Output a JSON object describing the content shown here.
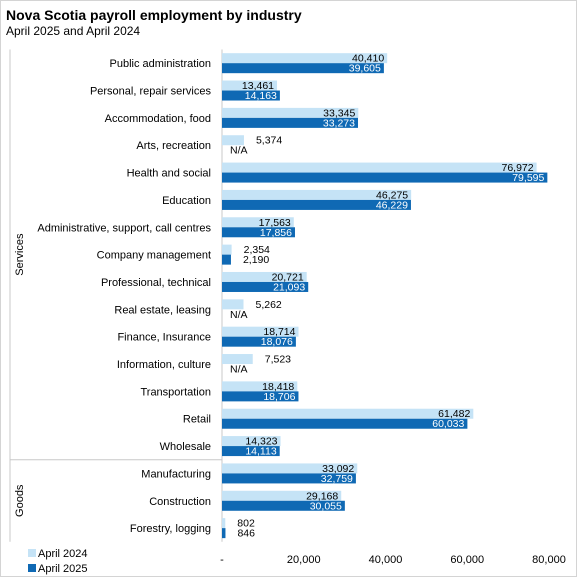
{
  "chart_data": {
    "type": "bar",
    "orientation": "horizontal",
    "title": "Nova Scotia payroll employment by industry",
    "subtitle": "April 2025 and April 2024",
    "xlim": [
      0,
      80000
    ],
    "x_ticks": [
      "-",
      "20,000",
      "40,000",
      "60,000",
      "80,000"
    ],
    "grid": false,
    "legend_position": "bottom-left",
    "colors": {
      "April 2024": "#c5e3f6",
      "April 2025": "#0f69b4"
    },
    "groups": [
      {
        "name": "Services",
        "categories": [
          "Public administration",
          "Personal, repair services",
          "Accommodation, food",
          "Arts, recreation",
          "Health and social",
          "Education",
          "Administrative, support, call centres",
          "Company management",
          "Professional, technical",
          "Real estate, leasing",
          "Finance, Insurance",
          "Information, culture",
          "Transportation",
          "Retail",
          "Wholesale"
        ]
      },
      {
        "name": "Goods",
        "categories": [
          "Manufacturing",
          "Construction",
          "Forestry, logging"
        ]
      }
    ],
    "categories": [
      "Public administration",
      "Personal, repair services",
      "Accommodation, food",
      "Arts, recreation",
      "Health and social",
      "Education",
      "Administrative, support, call centres",
      "Company management",
      "Professional, technical",
      "Real estate, leasing",
      "Finance, Insurance",
      "Information, culture",
      "Transportation",
      "Retail",
      "Wholesale",
      "Manufacturing",
      "Construction",
      "Forestry, logging"
    ],
    "series": [
      {
        "name": "April 2024",
        "values": [
          40410,
          13461,
          33345,
          5374,
          76972,
          46275,
          17563,
          2354,
          20721,
          5262,
          18714,
          7523,
          18418,
          61482,
          14323,
          33092,
          29168,
          802
        ],
        "labels": [
          "40,410",
          "13,461",
          "33,345",
          "5,374",
          "76,972",
          "46,275",
          "17,563",
          "2,354",
          "20,721",
          "5,262",
          "18,714",
          "7,523",
          "18,418",
          "61,482",
          "14,323",
          "33,092",
          "29,168",
          "802"
        ]
      },
      {
        "name": "April 2025",
        "values": [
          39605,
          14163,
          33273,
          null,
          79595,
          46229,
          17856,
          2190,
          21093,
          null,
          18076,
          null,
          18706,
          60033,
          14113,
          32759,
          30055,
          846
        ],
        "labels": [
          "39,605",
          "14,163",
          "33,273",
          "N/A",
          "79,595",
          "46,229",
          "17,856",
          "2,190",
          "21,093",
          "N/A",
          "18,076",
          "N/A",
          "18,706",
          "60,033",
          "14,113",
          "32,759",
          "30,055",
          "846"
        ]
      }
    ]
  }
}
